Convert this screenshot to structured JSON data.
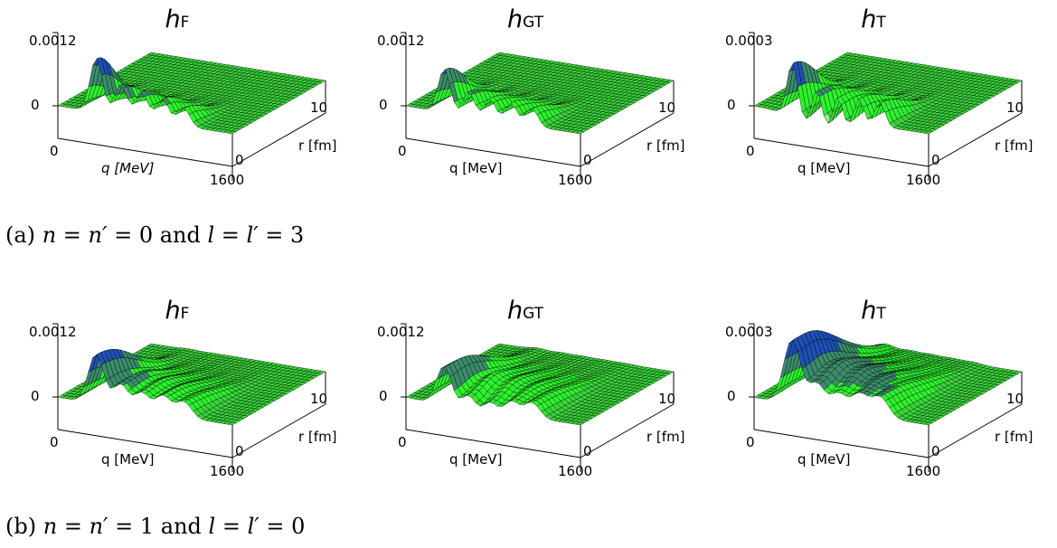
{
  "rows": [
    {
      "caption": {
        "label": "(a)",
        "n": "n",
        "np": "n′",
        "eq": " = ",
        "nval": "0",
        "and": " and ",
        "l": "l",
        "lp": "l′",
        "lval": "3"
      },
      "plots": [
        {
          "title_main": "h",
          "title_sub": "F",
          "zmax": "0.0012",
          "zzero": "0",
          "qmin": "0",
          "qmax": "1600",
          "qlabel": "q [MeV]",
          "rmin": "0",
          "rmax": "10",
          "rlabel": "r [fm]"
        },
        {
          "title_main": "h",
          "title_sub": "GT",
          "zmax": "0.0012",
          "zzero": "0",
          "qmin": "0",
          "qmax": "1600",
          "qlabel": "q [MeV]",
          "rmin": "0",
          "rmax": "10",
          "rlabel": "r [fm]"
        },
        {
          "title_main": "h",
          "title_sub": "T",
          "zmax": "0.0003",
          "zzero": "0",
          "qmin": "0",
          "qmax": "1600",
          "qlabel": "q [MeV]",
          "rmin": "0",
          "rmax": "10",
          "rlabel": "r [fm]"
        }
      ]
    },
    {
      "caption": {
        "label": "(b)",
        "n": "n",
        "np": "n′",
        "eq": " = ",
        "nval": "1",
        "and": " and ",
        "l": "l",
        "lp": "l′",
        "lval": "0"
      },
      "plots": [
        {
          "title_main": "h",
          "title_sub": "F",
          "zmax": "0.0012",
          "zzero": "0",
          "qmin": "0",
          "qmax": "1600",
          "qlabel": "q [MeV]",
          "rmin": "0",
          "rmax": "10",
          "rlabel": "r [fm]"
        },
        {
          "title_main": "h",
          "title_sub": "GT",
          "zmax": "0.0012",
          "zzero": "0",
          "qmin": "0",
          "qmax": "1600",
          "qlabel": "q [MeV]",
          "rmin": "0",
          "rmax": "10",
          "rlabel": "r [fm]"
        },
        {
          "title_main": "h",
          "title_sub": "T",
          "zmax": "0.0003",
          "zzero": "0",
          "qmin": "0",
          "qmax": "1600",
          "qlabel": "q [MeV]",
          "rmin": "0",
          "rmax": "10",
          "rlabel": "r [fm]"
        }
      ]
    }
  ],
  "colors": {
    "surface_low": "#2ef22e",
    "surface_mid": "#8ef08e",
    "surface_peak": "#1e50b4",
    "mesh": "#000000"
  },
  "chart_data": [
    {
      "type": "surface",
      "title": "hF",
      "xlabel": "q [MeV]",
      "ylabel": "r [fm]",
      "xlim": [
        0,
        1600
      ],
      "ylim": [
        0,
        10
      ],
      "zlim": [
        0,
        0.0012
      ],
      "z_peak_approx": 0.0011,
      "description_shape": "oscillatory ridges decaying with q"
    },
    {
      "type": "surface",
      "title": "hGT",
      "xlabel": "q [MeV]",
      "ylabel": "r [fm]",
      "xlim": [
        0,
        1600
      ],
      "ylim": [
        0,
        10
      ],
      "zlim": [
        0,
        0.0012
      ],
      "z_peak_approx": 0.00095
    },
    {
      "type": "surface",
      "title": "hT",
      "xlabel": "q [MeV]",
      "ylabel": "r [fm]",
      "xlim": [
        0,
        1600
      ],
      "ylim": [
        0,
        10
      ],
      "zlim": [
        0,
        0.0003
      ],
      "z_peak_approx": 0.00025
    },
    {
      "type": "surface",
      "title": "hF",
      "xlabel": "q [MeV]",
      "ylabel": "r [fm]",
      "xlim": [
        0,
        1600
      ],
      "ylim": [
        0,
        10
      ],
      "zlim": [
        0,
        0.0012
      ],
      "z_peak_approx": 0.001
    },
    {
      "type": "surface",
      "title": "hGT",
      "xlabel": "q [MeV]",
      "ylabel": "r [fm]",
      "xlim": [
        0,
        1600
      ],
      "ylim": [
        0,
        10
      ],
      "zlim": [
        0,
        0.0012
      ],
      "z_peak_approx": 0.00095
    },
    {
      "type": "surface",
      "title": "hT",
      "xlabel": "q [MeV]",
      "ylabel": "r [fm]",
      "xlim": [
        0,
        1600
      ],
      "ylim": [
        0,
        10
      ],
      "zlim": [
        0,
        0.0003
      ],
      "z_peak_approx": 0.00026
    }
  ]
}
